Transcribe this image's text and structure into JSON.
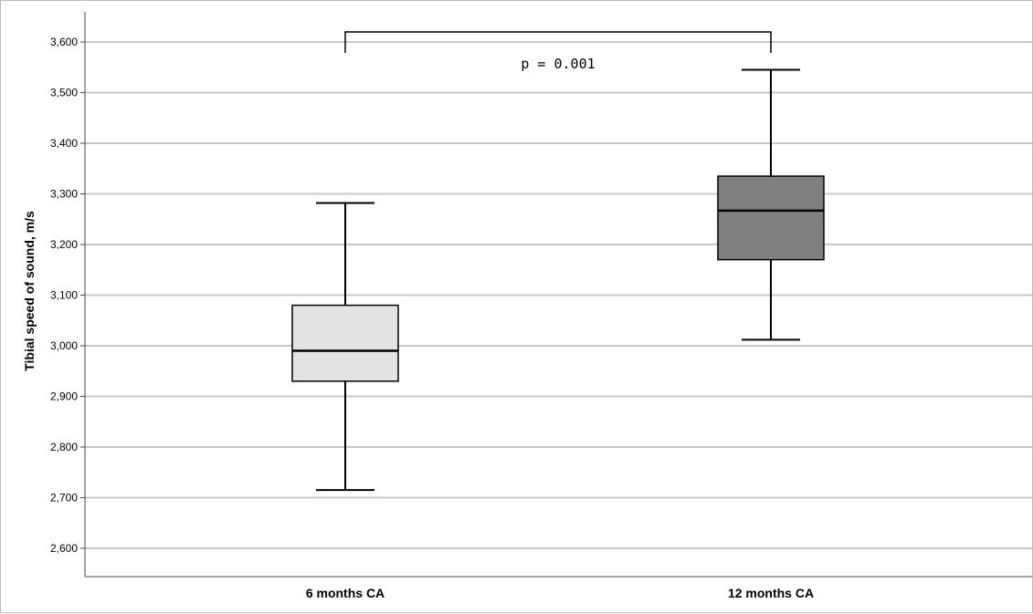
{
  "chart_data": {
    "type": "box",
    "ylabel": "Tibial speed of sound, m/s",
    "ylim": [
      2540,
      3660
    ],
    "yticks": [
      2600,
      2700,
      2800,
      2900,
      3000,
      3100,
      3200,
      3300,
      3400,
      3500,
      3600
    ],
    "ytick_labels": [
      "2,600",
      "2,700",
      "2,800",
      "2,900",
      "3,000",
      "3,100",
      "3,200",
      "3,300",
      "3,400",
      "3,500",
      "3,600"
    ],
    "grid": true,
    "categories": [
      "6 months CA",
      "12 months CA"
    ],
    "boxes": [
      {
        "category": "6 months CA",
        "min": 2715,
        "q1": 2930,
        "median": 2990,
        "q3": 3080,
        "max": 3282,
        "fill": "#e3e3e3"
      },
      {
        "category": "12 months CA",
        "min": 3012,
        "q1": 3170,
        "median": 3267,
        "q3": 3335,
        "max": 3545,
        "fill": "#808080"
      }
    ],
    "annotation": {
      "text": "p = 0.001",
      "between": [
        "6 months CA",
        "12 months CA"
      ],
      "bracket_y": 3620
    }
  }
}
